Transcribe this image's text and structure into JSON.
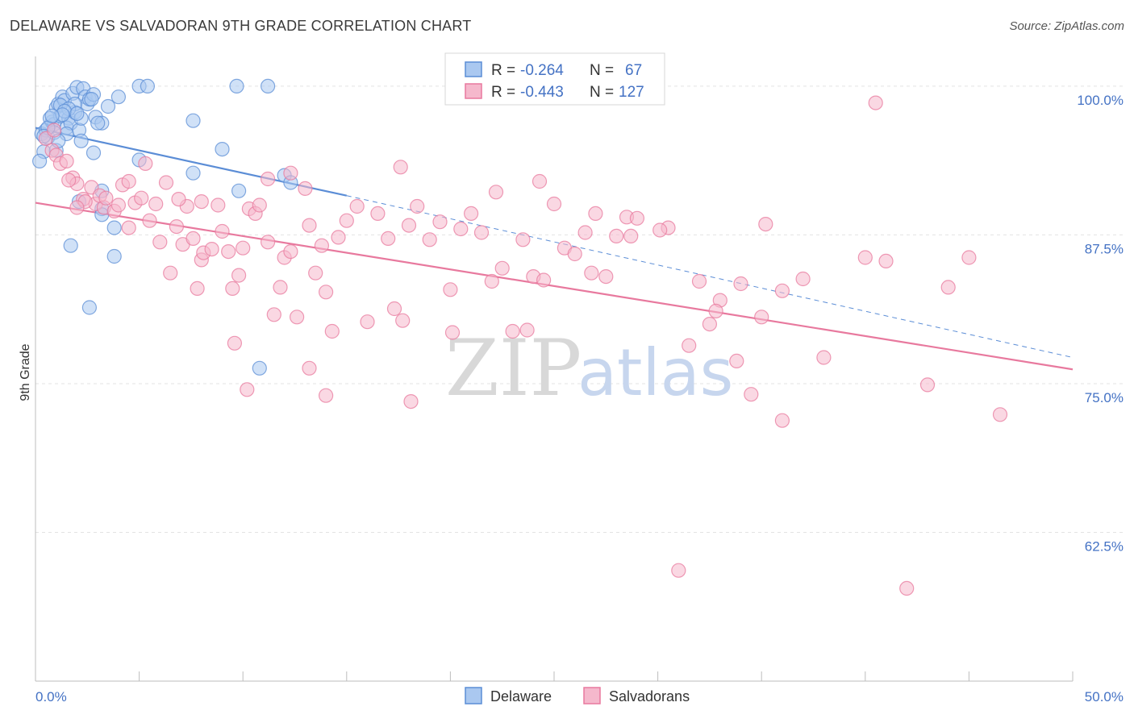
{
  "title": "DELAWARE VS SALVADORAN 9TH GRADE CORRELATION CHART",
  "source": "Source: ZipAtlas.com",
  "watermark": {
    "zip": "ZIP",
    "atlas": "atlas"
  },
  "legend": {
    "rows": [
      {
        "r_label": "R = ",
        "r_value": "-0.264",
        "n_label": "N = ",
        "n_value": "67",
        "color": "#5b8dd6"
      },
      {
        "r_label": "R = ",
        "r_value": "-0.443",
        "n_label": "N = ",
        "n_value": "127",
        "color": "#e8799e"
      }
    ]
  },
  "chart_data": {
    "type": "scatter",
    "title": "DELAWARE VS SALVADORAN 9TH GRADE CORRELATION CHART",
    "xlabel": "",
    "ylabel": "9th Grade",
    "xlim": [
      0,
      50
    ],
    "ylim": [
      50,
      102.5
    ],
    "x_tick_labels": [
      "0.0%",
      "50.0%"
    ],
    "y_ticks": [
      62.5,
      75.0,
      87.5,
      100.0
    ],
    "y_tick_labels": [
      "62.5%",
      "75.0%",
      "87.5%",
      "100.0%"
    ],
    "grid": true,
    "legend_position": "bottom",
    "series": [
      {
        "name": "Delaware",
        "color": "#5b8dd6",
        "fill": "#aac8f0",
        "trend": {
          "x": [
            0,
            15
          ],
          "y": [
            96.5,
            90.8
          ],
          "dashed_extension_to": [
            50,
            77.2
          ]
        },
        "points": [
          [
            0.3,
            96
          ],
          [
            0.5,
            96.3
          ],
          [
            0.6,
            95.7
          ],
          [
            0.4,
            94.5
          ],
          [
            0.2,
            93.7
          ],
          [
            0.8,
            97
          ],
          [
            0.9,
            96.8
          ],
          [
            1.0,
            98.2
          ],
          [
            1.1,
            98.5
          ],
          [
            1.2,
            97.5
          ],
          [
            1.3,
            99.1
          ],
          [
            1.4,
            98.8
          ],
          [
            1.6,
            97.3
          ],
          [
            1.5,
            96.5
          ],
          [
            1.7,
            96.9
          ],
          [
            1.8,
            99.4
          ],
          [
            1.9,
            97.8
          ],
          [
            2.0,
            99.9
          ],
          [
            2.1,
            96.3
          ],
          [
            2.2,
            95.4
          ],
          [
            2.3,
            99.8
          ],
          [
            2.4,
            99.1
          ],
          [
            2.5,
            98.5
          ],
          [
            2.6,
            98.9
          ],
          [
            2.8,
            99.3
          ],
          [
            2.9,
            97.4
          ],
          [
            3.2,
            96.9
          ],
          [
            3.5,
            98.3
          ],
          [
            4.0,
            99.1
          ],
          [
            5.0,
            100
          ],
          [
            5.4,
            100
          ],
          [
            7.6,
            97.1
          ],
          [
            9.0,
            94.7
          ],
          [
            9.7,
            100
          ],
          [
            11.2,
            100
          ],
          [
            12.0,
            92.5
          ],
          [
            1.0,
            94.6
          ],
          [
            2.8,
            94.4
          ],
          [
            1.5,
            96.0
          ],
          [
            0.7,
            97.3
          ],
          [
            1.2,
            98.4
          ],
          [
            3.0,
            96.9
          ],
          [
            1.9,
            98.5
          ],
          [
            1.6,
            98.1
          ],
          [
            0.9,
            96.1
          ],
          [
            0.6,
            96.5
          ],
          [
            0.4,
            95.8
          ],
          [
            1.4,
            97.9
          ],
          [
            2.2,
            97.3
          ],
          [
            5.0,
            93.8
          ],
          [
            7.6,
            92.7
          ],
          [
            9.8,
            91.2
          ],
          [
            12.3,
            91.9
          ],
          [
            2.1,
            90.3
          ],
          [
            3.2,
            91.2
          ],
          [
            3.2,
            89.7
          ],
          [
            3.2,
            89.2
          ],
          [
            3.8,
            88.1
          ],
          [
            1.7,
            86.6
          ],
          [
            3.8,
            85.7
          ],
          [
            2.6,
            81.4
          ],
          [
            10.8,
            76.3
          ],
          [
            1.3,
            97.6
          ],
          [
            2.0,
            97.7
          ],
          [
            2.7,
            98.9
          ],
          [
            0.8,
            97.5
          ],
          [
            1.1,
            95.4
          ]
        ]
      },
      {
        "name": "Salvadorans",
        "color": "#e8799e",
        "fill": "#f5b8cc",
        "trend": {
          "x": [
            0,
            50
          ],
          "y": [
            90.2,
            76.2
          ]
        },
        "points": [
          [
            0.5,
            95.6
          ],
          [
            0.8,
            94.6
          ],
          [
            1.0,
            94.2
          ],
          [
            1.2,
            93.5
          ],
          [
            1.5,
            93.7
          ],
          [
            1.8,
            92.3
          ],
          [
            2.0,
            91.8
          ],
          [
            2.3,
            90.5
          ],
          [
            2.7,
            91.5
          ],
          [
            2.9,
            90.1
          ],
          [
            3.1,
            90.8
          ],
          [
            3.3,
            89.8
          ],
          [
            3.8,
            89.5
          ],
          [
            4.2,
            91.7
          ],
          [
            4.5,
            88.1
          ],
          [
            4.8,
            90.2
          ],
          [
            5.1,
            90.6
          ],
          [
            5.5,
            88.7
          ],
          [
            5.8,
            90.1
          ],
          [
            6.0,
            86.9
          ],
          [
            6.3,
            91.9
          ],
          [
            6.5,
            84.3
          ],
          [
            6.8,
            88.2
          ],
          [
            7.1,
            86.7
          ],
          [
            7.3,
            89.9
          ],
          [
            7.6,
            87.2
          ],
          [
            7.8,
            83.0
          ],
          [
            8.0,
            85.4
          ],
          [
            8.1,
            86.0
          ],
          [
            8.5,
            86.3
          ],
          [
            8.8,
            90.0
          ],
          [
            9.0,
            87.8
          ],
          [
            9.3,
            86.1
          ],
          [
            9.5,
            83.0
          ],
          [
            9.8,
            84.1
          ],
          [
            10.0,
            86.4
          ],
          [
            10.3,
            89.7
          ],
          [
            10.6,
            89.3
          ],
          [
            10.8,
            90.0
          ],
          [
            11.2,
            86.9
          ],
          [
            11.5,
            80.8
          ],
          [
            11.8,
            83.1
          ],
          [
            12.0,
            85.6
          ],
          [
            12.3,
            86.1
          ],
          [
            12.6,
            80.6
          ],
          [
            13.0,
            91.4
          ],
          [
            13.2,
            88.3
          ],
          [
            13.5,
            84.3
          ],
          [
            13.8,
            86.6
          ],
          [
            14.0,
            82.7
          ],
          [
            14.3,
            79.4
          ],
          [
            14.6,
            87.3
          ],
          [
            15.0,
            88.7
          ],
          [
            15.5,
            89.9
          ],
          [
            16.0,
            80.2
          ],
          [
            16.5,
            89.3
          ],
          [
            17.0,
            87.2
          ],
          [
            17.3,
            81.3
          ],
          [
            17.7,
            80.3
          ],
          [
            18.0,
            88.3
          ],
          [
            18.4,
            89.9
          ],
          [
            19.0,
            87.1
          ],
          [
            19.5,
            88.6
          ],
          [
            20.0,
            82.9
          ],
          [
            20.5,
            88.0
          ],
          [
            21.0,
            89.3
          ],
          [
            21.5,
            87.7
          ],
          [
            22.0,
            83.6
          ],
          [
            22.5,
            84.7
          ],
          [
            23.0,
            79.4
          ],
          [
            23.5,
            87.1
          ],
          [
            24.0,
            84.0
          ],
          [
            24.5,
            83.7
          ],
          [
            25.0,
            90.1
          ],
          [
            25.5,
            86.4
          ],
          [
            26.0,
            85.9
          ],
          [
            26.5,
            87.7
          ],
          [
            27.0,
            89.3
          ],
          [
            27.5,
            84.0
          ],
          [
            28.0,
            87.4
          ],
          [
            28.5,
            89.0
          ],
          [
            29.0,
            88.9
          ],
          [
            30.5,
            88.1
          ],
          [
            32.0,
            83.6
          ],
          [
            32.5,
            80.0
          ],
          [
            33.0,
            82.0
          ],
          [
            34.0,
            83.4
          ],
          [
            35.0,
            80.6
          ],
          [
            36.0,
            82.8
          ],
          [
            37.0,
            83.8
          ],
          [
            38.0,
            77.2
          ],
          [
            40.0,
            85.6
          ],
          [
            41.0,
            85.3
          ],
          [
            43.0,
            74.9
          ],
          [
            44.0,
            83.1
          ],
          [
            45.0,
            85.6
          ],
          [
            46.5,
            72.4
          ],
          [
            42.0,
            57.8
          ],
          [
            34.5,
            74.1
          ],
          [
            31.0,
            59.3
          ],
          [
            40.5,
            98.6
          ],
          [
            36.0,
            71.9
          ],
          [
            31.5,
            78.2
          ],
          [
            28.7,
            87.4
          ],
          [
            22.2,
            91.1
          ],
          [
            17.6,
            93.2
          ],
          [
            12.3,
            92.7
          ],
          [
            11.2,
            92.2
          ],
          [
            8.0,
            90.3
          ],
          [
            6.9,
            90.5
          ],
          [
            9.6,
            78.4
          ],
          [
            10.2,
            74.5
          ],
          [
            13.2,
            76.3
          ],
          [
            14.0,
            74.0
          ],
          [
            18.1,
            73.5
          ],
          [
            20.1,
            79.3
          ],
          [
            23.7,
            79.5
          ],
          [
            24.3,
            92.0
          ],
          [
            26.8,
            84.3
          ],
          [
            30.1,
            87.9
          ],
          [
            32.8,
            81.1
          ],
          [
            33.8,
            76.9
          ],
          [
            35.2,
            88.4
          ],
          [
            5.3,
            93.5
          ],
          [
            4.5,
            92.0
          ],
          [
            2.4,
            90.3
          ],
          [
            1.6,
            92.1
          ],
          [
            2.0,
            89.8
          ],
          [
            3.4,
            90.6
          ],
          [
            4.0,
            90.0
          ],
          [
            0.9,
            96.3
          ]
        ]
      }
    ]
  },
  "bottom_legend": [
    {
      "label": "Delaware"
    },
    {
      "label": "Salvadorans"
    }
  ]
}
